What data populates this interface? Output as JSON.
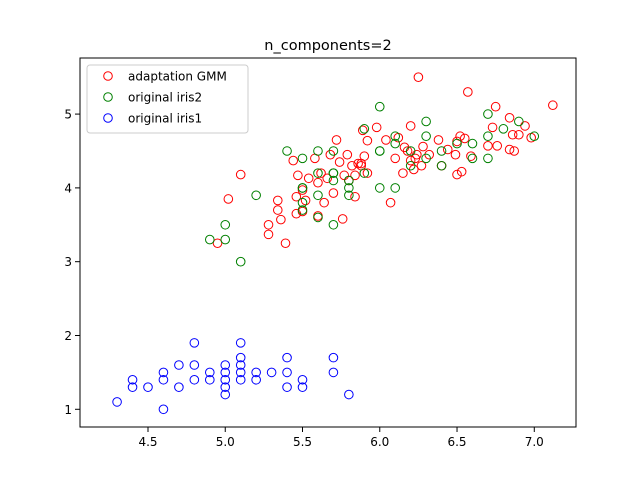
{
  "chart_data": {
    "type": "scatter",
    "title": "n_components=2",
    "xlabel": "",
    "ylabel": "",
    "xlim": [
      4.06,
      7.27
    ],
    "ylim": [
      0.76,
      5.76
    ],
    "xticks": [
      "4.5",
      "5.0",
      "5.5",
      "6.0",
      "6.5",
      "7.0"
    ],
    "xtick_values": [
      4.5,
      5.0,
      5.5,
      6.0,
      6.5,
      7.0
    ],
    "yticks": [
      "1",
      "2",
      "3",
      "4",
      "5"
    ],
    "ytick_values": [
      1,
      2,
      3,
      4,
      5
    ],
    "legend_position": "top-left",
    "marker": "hollow-circle",
    "series": [
      {
        "name": "adaptation GMM",
        "color": "#ff0000",
        "points": [
          [
            4.95,
            3.25
          ],
          [
            5.02,
            3.85
          ],
          [
            5.1,
            4.18
          ],
          [
            5.28,
            3.37
          ],
          [
            5.28,
            3.5
          ],
          [
            5.34,
            3.7
          ],
          [
            5.34,
            3.83
          ],
          [
            5.36,
            3.57
          ],
          [
            5.39,
            3.25
          ],
          [
            5.44,
            4.37
          ],
          [
            5.46,
            3.65
          ],
          [
            5.46,
            3.88
          ],
          [
            5.47,
            4.17
          ],
          [
            5.5,
            3.68
          ],
          [
            5.5,
            3.97
          ],
          [
            5.52,
            3.83
          ],
          [
            5.54,
            4.13
          ],
          [
            5.58,
            4.4
          ],
          [
            5.6,
            4.07
          ],
          [
            5.6,
            3.62
          ],
          [
            5.62,
            4.2
          ],
          [
            5.64,
            3.8
          ],
          [
            5.66,
            4.13
          ],
          [
            5.68,
            4.45
          ],
          [
            5.7,
            3.93
          ],
          [
            5.72,
            4.65
          ],
          [
            5.74,
            4.35
          ],
          [
            5.76,
            3.58
          ],
          [
            5.77,
            4.17
          ],
          [
            5.79,
            4.45
          ],
          [
            5.8,
            4.1
          ],
          [
            5.82,
            4.3
          ],
          [
            5.84,
            4.17
          ],
          [
            5.84,
            3.88
          ],
          [
            5.86,
            4.33
          ],
          [
            5.88,
            4.33
          ],
          [
            5.88,
            4.3
          ],
          [
            5.89,
            4.78
          ],
          [
            5.9,
            4.43
          ],
          [
            5.92,
            4.64
          ],
          [
            5.92,
            4.2
          ],
          [
            5.98,
            4.82
          ],
          [
            6.04,
            4.65
          ],
          [
            6.07,
            3.8
          ],
          [
            6.1,
            4.4
          ],
          [
            6.12,
            4.68
          ],
          [
            6.15,
            4.2
          ],
          [
            6.16,
            4.55
          ],
          [
            6.18,
            4.5
          ],
          [
            6.2,
            4.37
          ],
          [
            6.2,
            4.84
          ],
          [
            6.22,
            4.25
          ],
          [
            6.23,
            4.4
          ],
          [
            6.24,
            4.45
          ],
          [
            6.25,
            5.5
          ],
          [
            6.27,
            4.3
          ],
          [
            6.28,
            4.56
          ],
          [
            6.32,
            4.45
          ],
          [
            6.38,
            4.65
          ],
          [
            6.4,
            4.3
          ],
          [
            6.44,
            4.52
          ],
          [
            6.49,
            4.45
          ],
          [
            6.5,
            4.63
          ],
          [
            6.5,
            4.18
          ],
          [
            6.52,
            4.7
          ],
          [
            6.53,
            4.22
          ],
          [
            6.55,
            4.67
          ],
          [
            6.57,
            5.3
          ],
          [
            6.59,
            4.43
          ],
          [
            6.7,
            4.57
          ],
          [
            6.73,
            4.82
          ],
          [
            6.75,
            5.1
          ],
          [
            6.76,
            4.57
          ],
          [
            6.84,
            4.95
          ],
          [
            6.84,
            4.52
          ],
          [
            6.86,
            4.72
          ],
          [
            6.87,
            4.5
          ],
          [
            6.9,
            4.72
          ],
          [
            6.94,
            4.84
          ],
          [
            6.98,
            4.68
          ],
          [
            7.12,
            5.12
          ]
        ]
      },
      {
        "name": "original iris2",
        "color": "#008000",
        "points": [
          [
            4.9,
            3.3
          ],
          [
            5.0,
            3.3
          ],
          [
            5.0,
            3.5
          ],
          [
            5.1,
            3.0
          ],
          [
            5.2,
            3.9
          ],
          [
            5.4,
            4.5
          ],
          [
            5.5,
            3.7
          ],
          [
            5.5,
            3.8
          ],
          [
            5.5,
            4.0
          ],
          [
            5.5,
            4.0
          ],
          [
            5.5,
            4.4
          ],
          [
            5.6,
            3.6
          ],
          [
            5.6,
            3.9
          ],
          [
            5.6,
            4.2
          ],
          [
            5.6,
            4.5
          ],
          [
            5.7,
            3.5
          ],
          [
            5.7,
            4.1
          ],
          [
            5.7,
            4.2
          ],
          [
            5.7,
            4.2
          ],
          [
            5.7,
            4.5
          ],
          [
            5.8,
            3.9
          ],
          [
            5.8,
            4.0
          ],
          [
            5.8,
            4.1
          ],
          [
            5.9,
            4.2
          ],
          [
            5.9,
            4.8
          ],
          [
            6.0,
            4.0
          ],
          [
            6.0,
            4.5
          ],
          [
            6.0,
            4.5
          ],
          [
            6.0,
            5.1
          ],
          [
            6.1,
            4.0
          ],
          [
            6.1,
            4.6
          ],
          [
            6.1,
            4.7
          ],
          [
            6.2,
            4.3
          ],
          [
            6.2,
            4.5
          ],
          [
            6.3,
            4.4
          ],
          [
            6.3,
            4.7
          ],
          [
            6.3,
            4.9
          ],
          [
            6.4,
            4.3
          ],
          [
            6.4,
            4.5
          ],
          [
            6.5,
            4.6
          ],
          [
            6.6,
            4.4
          ],
          [
            6.6,
            4.6
          ],
          [
            6.7,
            4.4
          ],
          [
            6.7,
            4.7
          ],
          [
            6.7,
            5.0
          ],
          [
            6.8,
            4.8
          ],
          [
            6.9,
            4.9
          ],
          [
            7.0,
            4.7
          ]
        ]
      },
      {
        "name": "original iris1",
        "color": "#0000ff",
        "points": [
          [
            4.3,
            1.1
          ],
          [
            4.4,
            1.3
          ],
          [
            4.4,
            1.4
          ],
          [
            4.5,
            1.3
          ],
          [
            4.6,
            1.0
          ],
          [
            4.6,
            1.4
          ],
          [
            4.6,
            1.5
          ],
          [
            4.7,
            1.3
          ],
          [
            4.7,
            1.6
          ],
          [
            4.8,
            1.4
          ],
          [
            4.8,
            1.6
          ],
          [
            4.8,
            1.9
          ],
          [
            4.9,
            1.4
          ],
          [
            4.9,
            1.5
          ],
          [
            5.0,
            1.2
          ],
          [
            5.0,
            1.3
          ],
          [
            5.0,
            1.4
          ],
          [
            5.0,
            1.5
          ],
          [
            5.0,
            1.6
          ],
          [
            5.1,
            1.4
          ],
          [
            5.1,
            1.5
          ],
          [
            5.1,
            1.6
          ],
          [
            5.1,
            1.7
          ],
          [
            5.1,
            1.9
          ],
          [
            5.2,
            1.4
          ],
          [
            5.2,
            1.5
          ],
          [
            5.3,
            1.5
          ],
          [
            5.4,
            1.3
          ],
          [
            5.4,
            1.5
          ],
          [
            5.4,
            1.7
          ],
          [
            5.5,
            1.3
          ],
          [
            5.5,
            1.4
          ],
          [
            5.7,
            1.5
          ],
          [
            5.7,
            1.7
          ],
          [
            5.8,
            1.2
          ]
        ]
      }
    ]
  }
}
